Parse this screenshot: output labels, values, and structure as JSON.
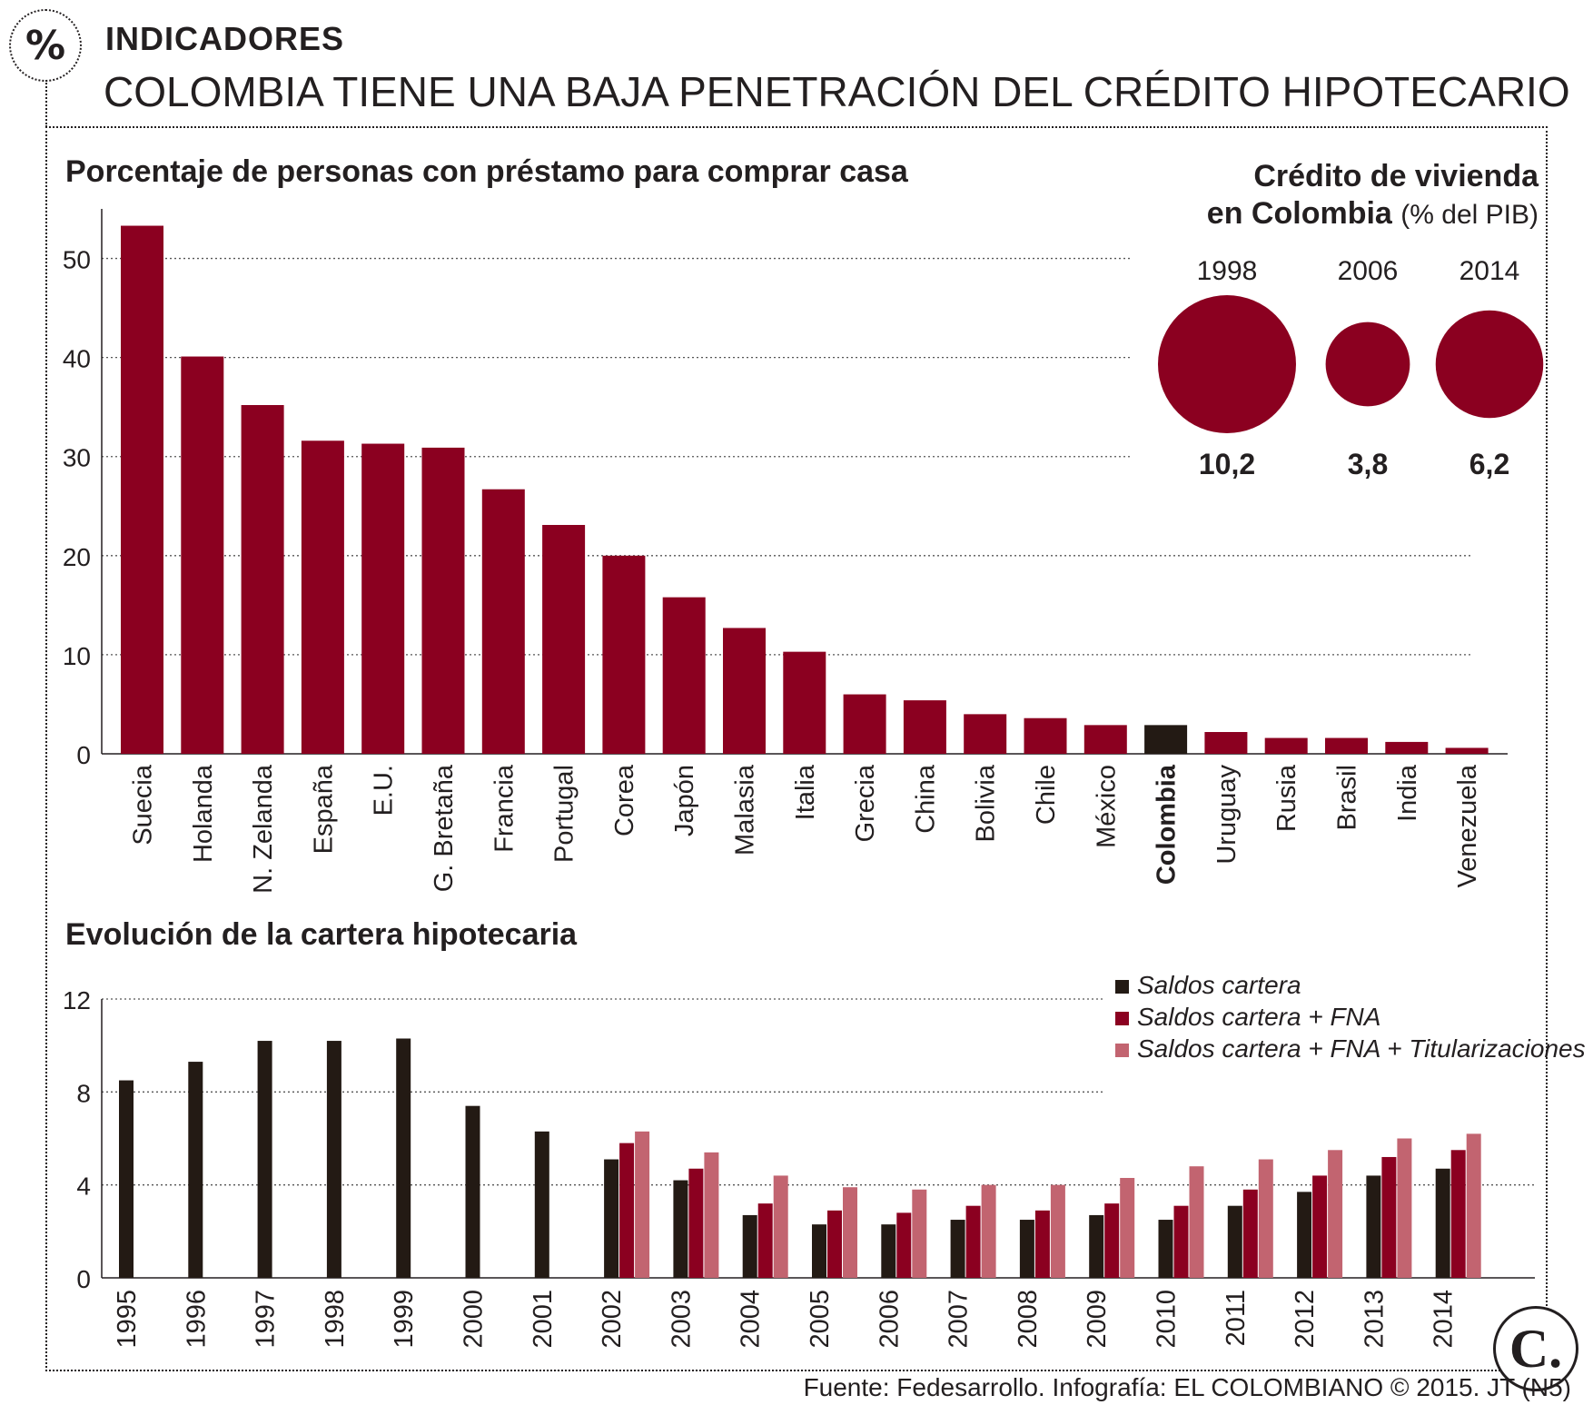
{
  "header": {
    "badge_symbol": "%",
    "kicker": "INDICADORES",
    "headline": "COLOMBIA TIENE UNA BAJA PENETRACIÓN DEL CRÉDITO HIPOTECARIO"
  },
  "colors": {
    "accent": "#8b0020",
    "highlight": "#231a14",
    "light": "#c26470",
    "ink": "#231f20"
  },
  "chart_data": [
    {
      "type": "bar",
      "title": "Porcentaje de personas con préstamo para comprar casa",
      "categories": [
        "Suecia",
        "Holanda",
        "N. Zelanda",
        "España",
        "E.U.",
        "G. Bretaña",
        "Francia",
        "Portugal",
        "Corea",
        "Japón",
        "Malasia",
        "Italia",
        "Grecia",
        "China",
        "Bolivia",
        "Chile",
        "México",
        "Colombia",
        "Uruguay",
        "Rusia",
        "Brasil",
        "India",
        "Venezuela"
      ],
      "values": [
        53.3,
        40.1,
        35.2,
        31.6,
        31.3,
        30.9,
        26.7,
        23.1,
        20.0,
        15.8,
        12.7,
        10.3,
        6.0,
        5.4,
        4.0,
        3.6,
        2.9,
        2.9,
        2.2,
        1.6,
        1.6,
        1.2,
        0.6
      ],
      "highlight_category": "Colombia",
      "yticks": [
        0,
        10,
        20,
        30,
        40,
        50
      ],
      "ylim": [
        0,
        55
      ],
      "grid": "dotted horizontal"
    },
    {
      "type": "bubble",
      "title": "Crédito de vivienda en Colombia",
      "unit": "(% del PIB)",
      "categories": [
        "1998",
        "2006",
        "2014"
      ],
      "values": [
        10.2,
        3.8,
        6.2
      ],
      "value_labels": [
        "10,2",
        "3,8",
        "6,2"
      ]
    },
    {
      "type": "bar",
      "title": "Evolución de la cartera hipotecaria",
      "categories": [
        "1995",
        "1996",
        "1997",
        "1998",
        "1999",
        "2000",
        "2001",
        "2002",
        "2003",
        "2004",
        "2005",
        "2006",
        "2007",
        "2008",
        "2009",
        "2010",
        "2011",
        "2012",
        "2013",
        "2014"
      ],
      "series": [
        {
          "name": "Saldos cartera",
          "values": [
            8.5,
            9.3,
            10.2,
            10.2,
            10.3,
            7.4,
            6.3,
            5.1,
            4.2,
            2.7,
            2.3,
            2.3,
            2.5,
            2.5,
            2.7,
            2.5,
            3.1,
            3.7,
            4.4,
            4.7
          ]
        },
        {
          "name": "Saldos cartera + FNA",
          "values": [
            null,
            null,
            null,
            null,
            null,
            null,
            null,
            5.8,
            4.7,
            3.2,
            2.9,
            2.8,
            3.1,
            2.9,
            3.2,
            3.1,
            3.8,
            4.4,
            5.2,
            5.5
          ]
        },
        {
          "name": "Saldos cartera + FNA + Titularizaciones",
          "values": [
            null,
            null,
            null,
            null,
            null,
            null,
            null,
            6.3,
            5.4,
            4.4,
            3.9,
            3.8,
            4.0,
            4.0,
            4.3,
            4.8,
            5.1,
            5.5,
            6.0,
            6.2
          ]
        }
      ],
      "yticks": [
        0,
        4,
        8,
        12
      ],
      "ylim": [
        0,
        12
      ],
      "legend": "top-right",
      "grid": "dotted horizontal"
    }
  ],
  "footer": {
    "source": "Fuente: Fedesarrollo. Infografía: EL COLOMBIANO © 2015. JT (N5)",
    "logo_letter": "C."
  }
}
